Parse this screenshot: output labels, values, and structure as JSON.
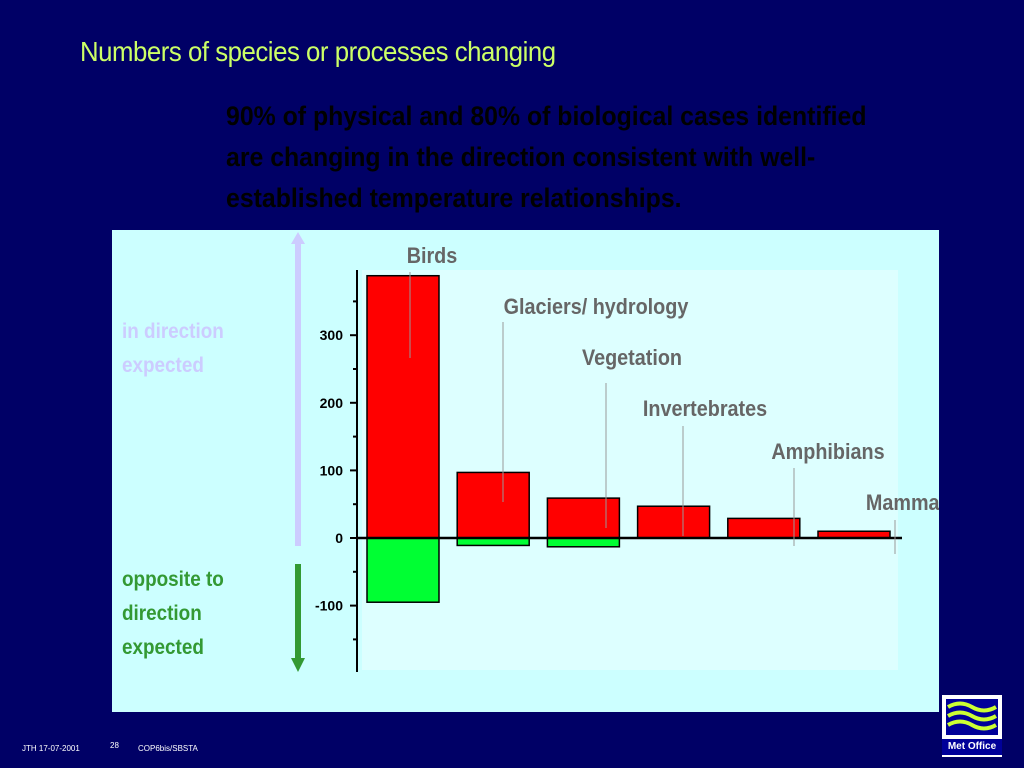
{
  "slide": {
    "title": "Numbers of species or processes changing",
    "subtitle": "90% of physical and 80% of biological cases identified are changing in the direction consistent with well-established temperature relationships.",
    "footer_left": "JTH 17-07-2001",
    "footer_page": "28",
    "footer_right": "COP6bis/SBSTA",
    "logo_text": "Met Office"
  },
  "colors": {
    "background": "#000066",
    "title": "#ccff66",
    "panel": "#ccffff",
    "positive_bar": "#ff0000",
    "negative_bar": "#00ff33",
    "label_gray": "#666666",
    "expected_label": "#ccccff",
    "opposite_label": "#339933"
  },
  "chart_data": {
    "type": "bar",
    "categories": [
      "Birds",
      "Glaciers/ hydrology",
      "Vegetation",
      "Invertebrates",
      "Amphibians",
      "Mammals"
    ],
    "series": [
      {
        "values": [
          388,
          97,
          59,
          47,
          29,
          10
        ]
      },
      {
        "values": [
          -95,
          -11,
          -13,
          0,
          0,
          0
        ]
      }
    ],
    "yticks": [
      300,
      200,
      100,
      0,
      -100
    ],
    "ylim": [
      -200,
      400
    ],
    "annotations": {
      "positive": "in direction expected",
      "negative": "opposite to direction expected"
    },
    "grid": false
  }
}
